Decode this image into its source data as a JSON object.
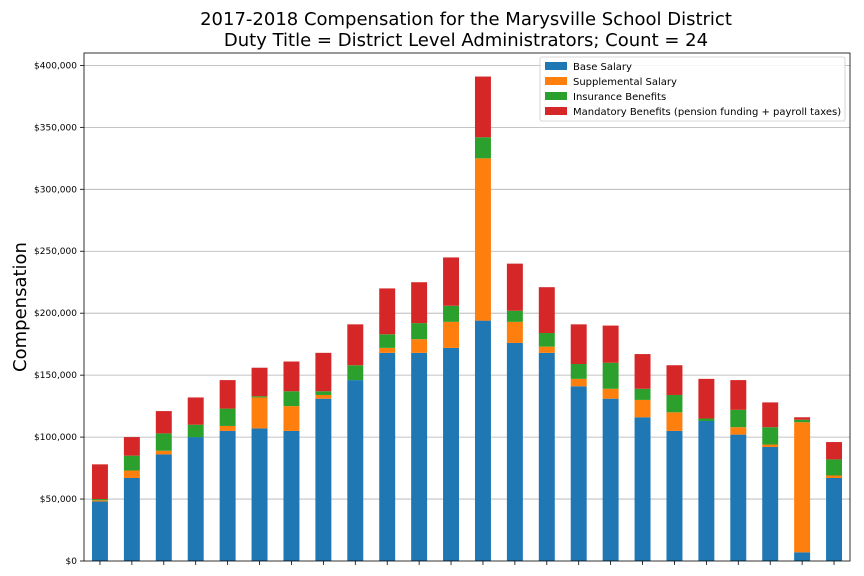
{
  "chart_data": {
    "type": "bar",
    "stacked": true,
    "title": "2017-2018 Compensation for the Marysville School District",
    "subtitle": "Duty Title = District Level Administrators; Count = 24",
    "xlabel": "",
    "ylabel": "Compensation",
    "ylim": [
      0,
      410000
    ],
    "yticks": [
      0,
      50000,
      100000,
      150000,
      200000,
      250000,
      300000,
      350000,
      400000
    ],
    "ytick_labels": [
      "$0",
      "$50,000",
      "$100,000",
      "$150,000",
      "$200,000",
      "$250,000",
      "$300,000",
      "$350,000",
      "$400,000"
    ],
    "grid": "horizontal",
    "legend_position": "top-right",
    "series": [
      {
        "name": "Base Salary",
        "color": "#1f77b4",
        "values": [
          48000,
          67000,
          86000,
          100000,
          105000,
          107000,
          105000,
          131000,
          146000,
          168000,
          168000,
          172000,
          194000,
          176000,
          168000,
          141000,
          131000,
          116000,
          105000,
          113000,
          102000,
          92000,
          7000,
          67000
        ]
      },
      {
        "name": "Supplemental Salary",
        "color": "#ff7f0e",
        "values": [
          1000,
          6000,
          3000,
          0,
          4000,
          25000,
          20000,
          3000,
          0,
          4000,
          11000,
          21000,
          131000,
          17000,
          5000,
          6000,
          8000,
          14000,
          15000,
          0,
          6000,
          2000,
          105000,
          2000
        ]
      },
      {
        "name": "Insurance Benefits",
        "color": "#2ca02c",
        "values": [
          1000,
          12000,
          14000,
          10000,
          14000,
          1000,
          12000,
          3000,
          12000,
          11000,
          13000,
          13000,
          17000,
          9000,
          11000,
          12000,
          21000,
          9000,
          14000,
          2000,
          14000,
          14000,
          2000,
          13000
        ]
      },
      {
        "name": "Mandatory Benefits (pension funding + payroll taxes)",
        "color": "#d62728",
        "values": [
          28000,
          15000,
          18000,
          22000,
          23000,
          23000,
          24000,
          31000,
          33000,
          37000,
          33000,
          39000,
          49000,
          38000,
          37000,
          32000,
          30000,
          28000,
          24000,
          32000,
          24000,
          20000,
          2000,
          14000
        ]
      }
    ]
  }
}
